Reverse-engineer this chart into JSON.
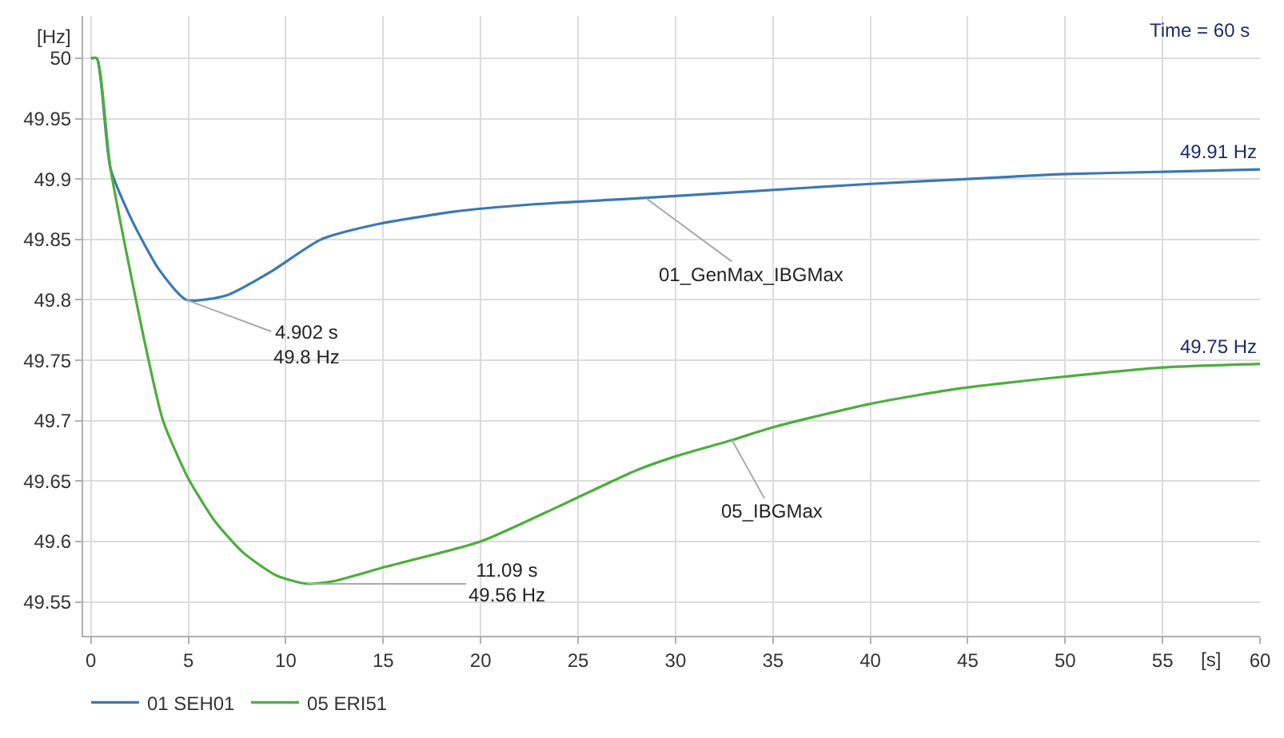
{
  "chart_data": {
    "type": "line",
    "xlabel": "[s]",
    "ylabel": "[Hz]",
    "xlim": [
      -0.4,
      60
    ],
    "ylim": [
      49.522,
      50.035
    ],
    "xticks": [
      0,
      5,
      10,
      15,
      20,
      25,
      30,
      35,
      40,
      45,
      50,
      55,
      60
    ],
    "yticks": [
      49.55,
      49.6,
      49.65,
      49.7,
      49.75,
      49.8,
      49.85,
      49.9,
      49.95,
      50
    ],
    "grid": true,
    "legend": "bottom left",
    "marker": "none",
    "line_style": "solid",
    "series": [
      {
        "name": "01 SEH01",
        "color": "#3b78b5",
        "x": [
          0,
          0.3,
          1,
          2.1,
          3.5,
          4.902,
          7,
          9.2,
          11.8,
          14.5,
          18.6,
          22.6,
          28,
          34,
          40,
          45,
          49.7,
          55,
          60
        ],
        "values": [
          50,
          50,
          49.909,
          49.866,
          49.825,
          49.8,
          49.804,
          49.823,
          49.85,
          49.862,
          49.873,
          49.879,
          49.884,
          49.89,
          49.896,
          49.9,
          49.904,
          49.906,
          49.908
        ]
      },
      {
        "name": "05 ERI51",
        "color": "#4cae3c",
        "x": [
          0,
          0.3,
          1,
          2.8,
          3.7,
          5,
          6.4,
          7.8,
          9.5,
          11.09,
          12.4,
          15.1,
          20,
          24,
          28,
          30.1,
          32.9,
          35.1,
          40,
          44.3,
          49.7,
          55,
          60
        ],
        "values": [
          50,
          50,
          49.909,
          49.762,
          49.7,
          49.652,
          49.616,
          49.591,
          49.572,
          49.565,
          49.567,
          49.579,
          49.6,
          49.629,
          49.659,
          49.671,
          49.684,
          49.695,
          49.714,
          49.726,
          49.736,
          49.744,
          49.747
        ]
      }
    ],
    "annotations": [
      {
        "text": "4.902 s\n49.8 Hz",
        "x": 4.902,
        "y": 49.8
      },
      {
        "text": "11.09 s\n49.56 Hz",
        "x": 11.09,
        "y": 49.565
      },
      {
        "text": "01_GenMax_IBGMax",
        "x": 28.5,
        "y": 49.884
      },
      {
        "text": "05_IBGMax",
        "x": 32.9,
        "y": 49.684
      },
      {
        "text": "49.91 Hz",
        "x": 60,
        "y": 49.908
      },
      {
        "text": "49.75 Hz",
        "x": 60,
        "y": 49.747
      },
      "Time = 60 s"
    ]
  }
}
